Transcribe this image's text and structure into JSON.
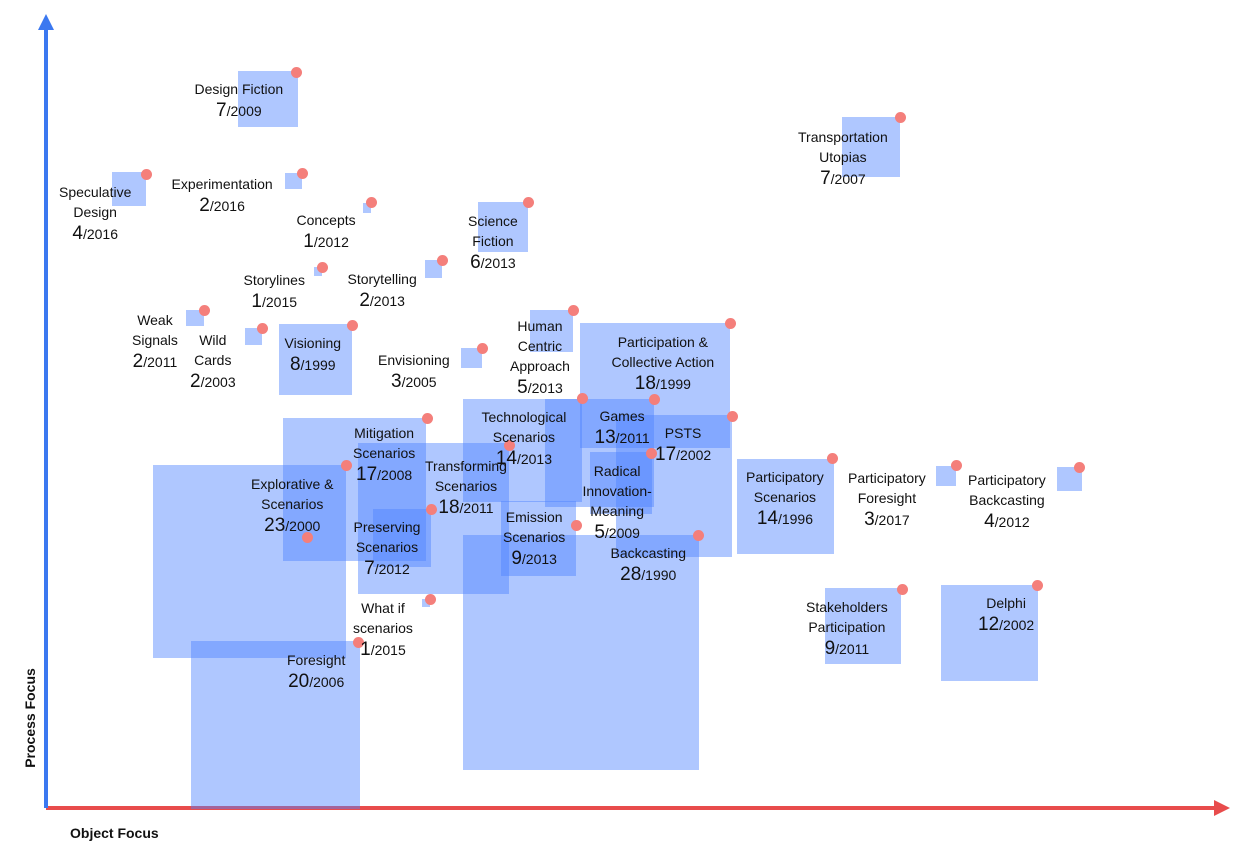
{
  "axes": {
    "x_label": "Object Focus",
    "y_label": "Process Focus",
    "x_color": "#e84c4c",
    "y_color": "#3b78f0"
  },
  "colors": {
    "box": "#4d82ff",
    "dot": "#f47f7b"
  },
  "methods": [
    {
      "id": "design-fiction",
      "lines": [
        "Design Fiction"
      ],
      "count": "7",
      "year": "/2009"
    },
    {
      "id": "transportation-utopias",
      "lines": [
        "Transportation",
        "Utopias"
      ],
      "count": "7",
      "year": "/2007"
    },
    {
      "id": "speculative-design",
      "lines": [
        "Speculative",
        "Design"
      ],
      "count": "4",
      "year": "/2016"
    },
    {
      "id": "experimentation",
      "lines": [
        "Experimentation"
      ],
      "count": "2",
      "year": "/2016"
    },
    {
      "id": "concepts",
      "lines": [
        "Concepts"
      ],
      "count": "1",
      "year": "/2012"
    },
    {
      "id": "science-fiction",
      "lines": [
        "Science",
        "Fiction"
      ],
      "count": "6",
      "year": "/2013"
    },
    {
      "id": "storylines",
      "lines": [
        "Storylines"
      ],
      "count": "1",
      "year": "/2015"
    },
    {
      "id": "storytelling",
      "lines": [
        "Storytelling"
      ],
      "count": "2",
      "year": "/2013"
    },
    {
      "id": "weak-signals",
      "lines": [
        "Weak",
        "Signals"
      ],
      "count": "2",
      "year": "/2011"
    },
    {
      "id": "wild-cards",
      "lines": [
        "Wild",
        "Cards"
      ],
      "count": "2",
      "year": "/2003"
    },
    {
      "id": "visioning",
      "lines": [
        "Visioning"
      ],
      "count": "8",
      "year": "/1999"
    },
    {
      "id": "envisioning",
      "lines": [
        "Envisioning"
      ],
      "count": "3",
      "year": "/2005"
    },
    {
      "id": "human-centric-approach",
      "lines": [
        "Human",
        "Centric",
        "Approach"
      ],
      "count": "5",
      "year": "/2013"
    },
    {
      "id": "participation-collective-action",
      "lines": [
        "Participation &",
        "Collective Action"
      ],
      "count": "18",
      "year": "/1999"
    },
    {
      "id": "technological-scenarios",
      "lines": [
        "Technological",
        "Scenarios"
      ],
      "count": "14",
      "year": "/2013"
    },
    {
      "id": "games",
      "lines": [
        "Games"
      ],
      "count": "13",
      "year": "/2011"
    },
    {
      "id": "psts",
      "lines": [
        "PSTS"
      ],
      "count": "17",
      "year": "/2002"
    },
    {
      "id": "mitigation-scenarios",
      "lines": [
        "Mitigation",
        "Scenarios"
      ],
      "count": "17",
      "year": "/2008"
    },
    {
      "id": "transforming-scenarios",
      "lines": [
        "Transforming",
        "Scenarios"
      ],
      "count": "18",
      "year": "/2011"
    },
    {
      "id": "radical-innovation-meaning",
      "lines": [
        "Radical",
        "Innovation-",
        "Meaning"
      ],
      "count": "5",
      "year": "/2009"
    },
    {
      "id": "explorative-scenarios",
      "lines": [
        "Explorative &",
        "Scenarios"
      ],
      "count": "23",
      "year": "/2000"
    },
    {
      "id": "emission-scenarios",
      "lines": [
        "Emission",
        "Scenarios"
      ],
      "count": "9",
      "year": "/2013"
    },
    {
      "id": "preserving-scenarios",
      "lines": [
        "Preserving",
        "Scenarios"
      ],
      "count": "7",
      "year": "/2012"
    },
    {
      "id": "backcasting",
      "lines": [
        "Backcasting"
      ],
      "count": "28",
      "year": "/1990"
    },
    {
      "id": "participatory-scenarios",
      "lines": [
        "Participatory",
        "Scenarios"
      ],
      "count": "14",
      "year": "/1996"
    },
    {
      "id": "participatory-foresight",
      "lines": [
        "Participatory",
        "Foresight"
      ],
      "count": "3",
      "year": "/2017"
    },
    {
      "id": "participatory-backcasting",
      "lines": [
        "Participatory",
        "Backcasting"
      ],
      "count": "4",
      "year": "/2012"
    },
    {
      "id": "what-if-scenarios",
      "lines": [
        "What if",
        "scenarios"
      ],
      "count": "1",
      "year": "/2015"
    },
    {
      "id": "foresight",
      "lines": [
        "Foresight"
      ],
      "count": "20",
      "year": "/2006"
    },
    {
      "id": "stakeholders-participation",
      "lines": [
        "Stakeholders",
        "Participation"
      ],
      "count": "9",
      "year": "/2011"
    },
    {
      "id": "delphi",
      "lines": [
        "Delphi"
      ],
      "count": "12",
      "year": "/2002"
    }
  ]
}
